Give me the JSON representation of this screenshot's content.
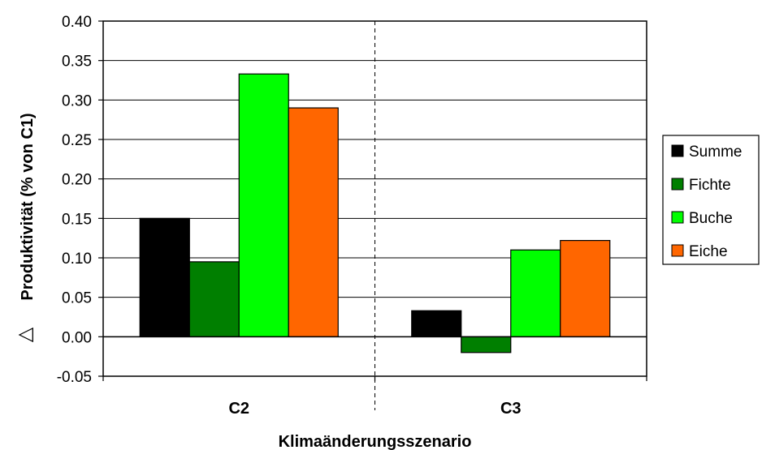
{
  "chart_data": {
    "type": "bar",
    "categories": [
      "C2",
      "C3"
    ],
    "series": [
      {
        "name": "Summe",
        "color": "#000000",
        "values": [
          0.15,
          0.033
        ]
      },
      {
        "name": "Fichte",
        "color": "#007F00",
        "values": [
          0.095,
          -0.02
        ]
      },
      {
        "name": "Buche",
        "color": "#00FF00",
        "values": [
          0.333,
          0.11
        ]
      },
      {
        "name": "Eiche",
        "color": "#FF6600",
        "values": [
          0.29,
          0.122
        ]
      }
    ],
    "xlabel": "Klimaänderungsszenario",
    "ylabel_symbol": "△",
    "ylabel": "Produktivität (% von C1)",
    "ylim": [
      -0.05,
      0.4
    ],
    "yticks": [
      "0.40",
      "0.35",
      "0.30",
      "0.25",
      "0.20",
      "0.15",
      "0.10",
      "0.05",
      "0.00",
      "-0.05"
    ],
    "grid": "horizontal",
    "category_separator": "dashed",
    "legend_position": "right"
  }
}
